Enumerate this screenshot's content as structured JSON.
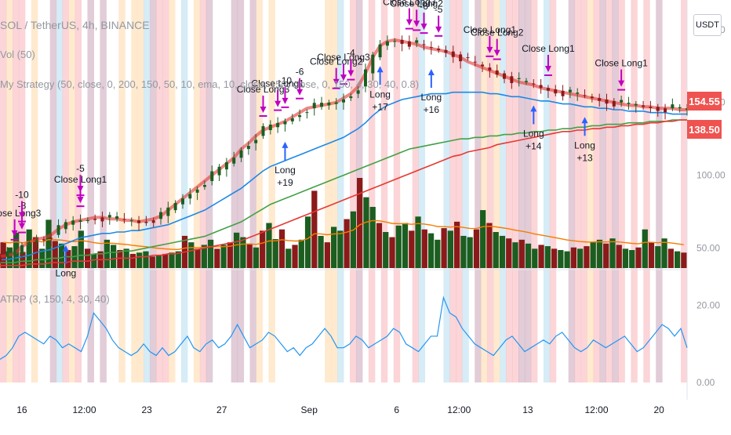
{
  "header": {
    "symbol_line": "SOL / TetherUS, 4h, BINANCE",
    "volume_legend": "Vol (50)",
    "strategy_legend": "My Strategy (50, close, 0, 200, 150, 50, 10, ema, 10, close, 150, close, 0, 150, 4, 30, 40, 0.8)",
    "atrp_legend": "ATRP (3, 150, 4, 30, 40)",
    "currency_button": "USDT"
  },
  "price_labels": [
    "154.55",
    "138.50"
  ],
  "colors": {
    "background": "#ffffff",
    "zone_red": "#f7b3b8",
    "zone_orange": "#ffd8a8",
    "zone_purple": "#c9a3b6",
    "zone_blue": "#b4ddee",
    "candle_up": "#1b5e20",
    "candle_down": "#8b1a1a",
    "ema_short": "#e53935",
    "ema_mid": "#1e88e5",
    "ema_long_green": "#43a047",
    "ema_long_red": "#e53935",
    "entry_arrow": "#2962ff",
    "exit_arrow": "#c000c0",
    "volume_ma": "#f57c00",
    "atrp_line": "#2196f3",
    "price_label_bg": "#ef5350"
  },
  "chart_data": [
    {
      "type": "line",
      "panel": "price",
      "y_axis_ticks": [
        200,
        150,
        100,
        50
      ],
      "ylim": [
        40,
        215
      ],
      "x_tick_labels": [
        "16",
        "12:00",
        "23",
        "27",
        "Sep",
        "6",
        "12:00",
        "13",
        "12:00",
        "20"
      ],
      "x_tick_index": [
        3,
        13,
        23,
        35,
        49,
        63,
        73,
        84,
        95,
        105
      ],
      "series": [
        {
          "values": [
            44,
            45,
            46,
            51,
            54,
            56,
            57,
            59,
            63,
            66,
            68,
            69,
            70,
            71,
            71,
            70,
            70,
            69,
            69,
            68,
            69,
            70,
            72,
            76,
            80,
            84,
            88,
            92,
            96,
            100,
            104,
            108,
            112,
            118,
            122,
            127,
            131,
            133,
            135,
            137,
            140,
            143,
            146,
            147,
            148,
            149,
            150,
            153,
            156,
            161,
            170,
            181,
            189,
            192,
            193,
            192,
            191,
            190,
            188,
            187,
            186,
            185,
            183,
            181,
            178,
            176,
            174,
            172,
            170,
            168,
            166,
            164,
            163,
            162,
            160,
            159,
            158,
            157,
            156,
            155,
            154,
            153,
            152,
            151,
            150,
            149,
            148,
            148,
            147,
            147,
            146,
            146,
            146,
            145,
            145
          ]
        },
        {
          "values": [
            42,
            42,
            43,
            44,
            45,
            47,
            48,
            49,
            51,
            53,
            55,
            57,
            58,
            59,
            60,
            60,
            61,
            61,
            62,
            62,
            63,
            64,
            65,
            66,
            68,
            70,
            72,
            74,
            76,
            79,
            82,
            85,
            88,
            91,
            95,
            99,
            103,
            106,
            108,
            110,
            112,
            114,
            116,
            118,
            120,
            122,
            124,
            126,
            129,
            132,
            136,
            141,
            145,
            148,
            150,
            152,
            153,
            154,
            155,
            156,
            156,
            156,
            157,
            157,
            157,
            157,
            157,
            156,
            156,
            155,
            154,
            154,
            153,
            152,
            151,
            151,
            150,
            149,
            149,
            148,
            147,
            147,
            146,
            146,
            145,
            145,
            144,
            144,
            144,
            143,
            143,
            143,
            142,
            142,
            142
          ]
        },
        {
          "values": [
            40,
            40,
            40,
            41,
            41,
            42,
            42,
            43,
            43,
            44,
            44,
            45,
            45,
            46,
            46,
            47,
            47,
            48,
            48,
            49,
            50,
            51,
            52,
            53,
            54,
            55,
            56,
            57,
            58,
            60,
            62,
            64,
            66,
            68,
            71,
            74,
            77,
            80,
            82,
            84,
            86,
            88,
            90,
            92,
            94,
            96,
            98,
            100,
            102,
            104,
            106,
            108,
            110,
            112,
            114,
            116,
            118,
            119,
            120,
            121,
            122,
            123,
            124,
            125,
            125,
            126,
            126,
            127,
            127,
            128,
            128,
            129,
            129,
            130,
            130,
            131,
            131,
            132,
            132,
            133,
            133,
            134,
            134,
            135,
            135,
            135,
            136,
            136,
            136,
            137,
            137,
            137,
            138,
            138,
            138
          ]
        },
        {
          "values": [
            38,
            38,
            38,
            38,
            39,
            39,
            39,
            40,
            40,
            40,
            41,
            41,
            41,
            42,
            42,
            42,
            43,
            43,
            43,
            44,
            44,
            45,
            45,
            46,
            46,
            47,
            48,
            49,
            50,
            51,
            52,
            53,
            54,
            55,
            57,
            59,
            61,
            63,
            65,
            67,
            69,
            71,
            73,
            75,
            77,
            79,
            81,
            83,
            85,
            87,
            89,
            91,
            93,
            95,
            97,
            99,
            101,
            103,
            105,
            107,
            109,
            111,
            113,
            114,
            116,
            117,
            118,
            119,
            121,
            122,
            123,
            124,
            125,
            126,
            127,
            128,
            129,
            130,
            130,
            131,
            131,
            132,
            132,
            133,
            133,
            134,
            134,
            135,
            135,
            136,
            136,
            137,
            137,
            138,
            138
          ]
        }
      ]
    },
    {
      "type": "bar",
      "panel": "volume",
      "values": [
        40,
        32,
        55,
        25,
        60,
        48,
        30,
        75,
        42,
        38,
        28,
        34,
        58,
        30,
        22,
        26,
        44,
        36,
        28,
        30,
        22,
        24,
        26,
        18,
        20,
        22,
        24,
        26,
        50,
        40,
        30,
        36,
        44,
        30,
        36,
        40,
        55,
        48,
        38,
        32,
        58,
        70,
        45,
        60,
        30,
        36,
        44,
        80,
        120,
        50,
        40,
        64,
        58,
        76,
        88,
        140,
        110,
        95,
        70,
        56,
        48,
        66,
        70,
        58,
        80,
        60,
        54,
        44,
        62,
        58,
        72,
        50,
        48,
        60,
        90,
        70,
        56,
        50,
        46,
        40,
        44,
        38,
        30,
        36,
        34,
        30,
        28,
        26,
        32,
        30,
        34,
        40,
        44,
        38,
        46,
        36,
        30,
        28,
        32,
        60,
        40,
        34,
        46,
        30,
        26,
        24
      ]
    },
    {
      "type": "area",
      "panel": "ATRP",
      "y_axis_ticks": [
        20,
        0
      ],
      "ylim": [
        0,
        26
      ],
      "values": [
        6,
        7,
        9,
        12,
        13,
        12,
        11,
        10,
        12,
        11,
        9,
        10,
        9,
        8,
        12,
        18,
        16,
        14,
        11,
        9,
        8,
        7,
        8,
        10,
        8,
        7,
        9,
        7,
        8,
        10,
        12,
        9,
        8,
        10,
        11,
        9,
        10,
        12,
        15,
        12,
        9,
        10,
        11,
        13,
        12,
        10,
        8,
        9,
        7,
        9,
        10,
        12,
        14,
        12,
        9,
        9,
        10,
        12,
        11,
        9,
        10,
        11,
        12,
        14,
        13,
        10,
        9,
        8,
        10,
        12,
        12,
        22,
        18,
        17,
        14,
        12,
        10,
        9,
        8,
        7,
        9,
        11,
        12,
        10,
        8,
        9,
        10,
        11,
        10,
        12,
        13,
        11,
        9,
        8,
        9,
        11,
        10,
        9,
        10,
        11,
        12,
        10,
        8,
        9,
        11,
        13,
        15,
        14,
        12,
        14,
        9
      ]
    }
  ],
  "annotations": {
    "entries": [
      {
        "i": 9,
        "label": "Long"
      },
      {
        "i": 39,
        "label": "Long +19"
      },
      {
        "i": 52,
        "label": "Long +17"
      },
      {
        "i": 59,
        "label": "Long +16"
      },
      {
        "i": 73,
        "label": "Long +14"
      },
      {
        "i": 80,
        "label": "Long +13"
      }
    ],
    "exits": [
      {
        "i": 2,
        "label": "Close Long3"
      },
      {
        "i": 3,
        "label": "-8"
      },
      {
        "i": 3,
        "label": "-10"
      },
      {
        "i": 11,
        "label": "Close Long1"
      },
      {
        "i": 11,
        "label": "-5"
      },
      {
        "i": 36,
        "label": "Close Long3"
      },
      {
        "i": 38,
        "label": "Close Long1"
      },
      {
        "i": 39,
        "label": "-10"
      },
      {
        "i": 41,
        "label": "-6"
      },
      {
        "i": 46,
        "label": "Close Long2"
      },
      {
        "i": 47,
        "label": "Close Long3"
      },
      {
        "i": 48,
        "label": "-4"
      },
      {
        "i": 56,
        "label": "Close Long3"
      },
      {
        "i": 57,
        "label": "Close Long2"
      },
      {
        "i": 58,
        "label": "-6"
      },
      {
        "i": 60,
        "label": "-5"
      },
      {
        "i": 67,
        "label": "Close Long1"
      },
      {
        "i": 68,
        "label": "Close Long2"
      },
      {
        "i": 75,
        "label": "Close Long1"
      },
      {
        "i": 85,
        "label": "Close Long1"
      }
    ]
  }
}
